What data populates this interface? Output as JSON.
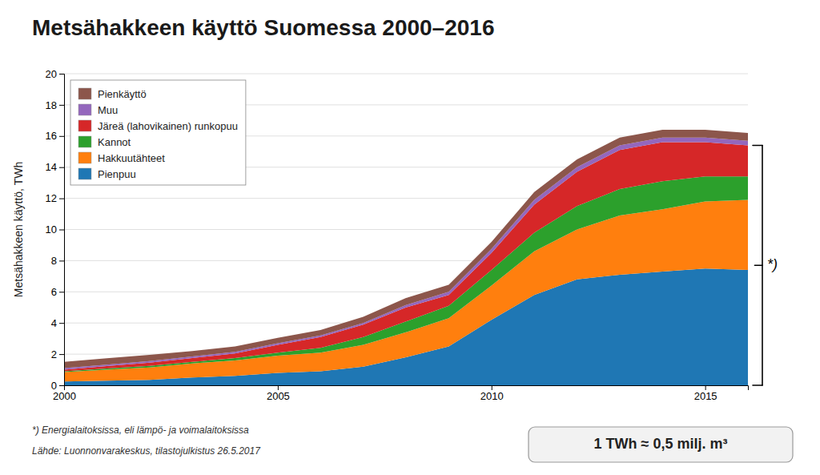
{
  "chart_data": {
    "type": "area",
    "title": "Metsähakkeen käyttö Suomessa 2000–2016",
    "y_label": "Metsähakkeen käyttö, TWh",
    "annotations": [
      "*)",
      "*) Energialaitoksissa, eli lämpö- ja voimalaitoksissa",
      "Lähde: Luonnonvarakeskus, tilastojulkistus 26.5.2017",
      "1 TWh ≈ 0,5 milj. m³"
    ],
    "x": [
      2000,
      2001,
      2002,
      2003,
      2004,
      2005,
      2006,
      2007,
      2008,
      2009,
      2010,
      2011,
      2012,
      2013,
      2014,
      2015,
      2016
    ],
    "series": [
      {
        "name": "Pienpuu",
        "values": [
          0.25,
          0.3,
          0.35,
          0.5,
          0.6,
          0.8,
          0.9,
          1.2,
          1.8,
          2.5,
          4.2,
          5.8,
          6.8,
          7.1,
          7.3,
          7.5,
          7.4
        ]
      },
      {
        "name": "Hakkuutähteet",
        "values": [
          0.6,
          0.7,
          0.8,
          0.9,
          1.0,
          1.1,
          1.2,
          1.4,
          1.6,
          1.8,
          2.2,
          2.8,
          3.2,
          3.8,
          4.0,
          4.3,
          4.5
        ]
      },
      {
        "name": "Kannot",
        "values": [
          0.05,
          0.08,
          0.1,
          0.1,
          0.15,
          0.2,
          0.3,
          0.5,
          0.7,
          0.8,
          1.0,
          1.2,
          1.5,
          1.7,
          1.8,
          1.6,
          1.5
        ]
      },
      {
        "name": "Järeä (lahovikainen) runkopuu",
        "values": [
          0.1,
          0.15,
          0.2,
          0.25,
          0.3,
          0.5,
          0.7,
          0.8,
          0.9,
          0.7,
          1.1,
          1.8,
          2.2,
          2.5,
          2.5,
          2.2,
          2.0
        ]
      },
      {
        "name": "Muu",
        "values": [
          0.1,
          0.1,
          0.1,
          0.1,
          0.1,
          0.1,
          0.1,
          0.1,
          0.15,
          0.2,
          0.25,
          0.3,
          0.3,
          0.3,
          0.3,
          0.3,
          0.3
        ]
      },
      {
        "name": "Pienkäyttö",
        "values": [
          0.4,
          0.4,
          0.4,
          0.35,
          0.35,
          0.35,
          0.35,
          0.4,
          0.45,
          0.45,
          0.45,
          0.5,
          0.5,
          0.5,
          0.5,
          0.5,
          0.5
        ]
      }
    ],
    "xlim": [
      2000,
      2016
    ],
    "xticks": [
      2000,
      2005,
      2010,
      2015
    ],
    "ylim": [
      0,
      20
    ],
    "yticks": [
      0,
      2,
      4,
      6,
      8,
      10,
      12,
      14,
      16,
      18,
      20
    ],
    "stacked": true,
    "grid": true,
    "legend": "upper left"
  }
}
